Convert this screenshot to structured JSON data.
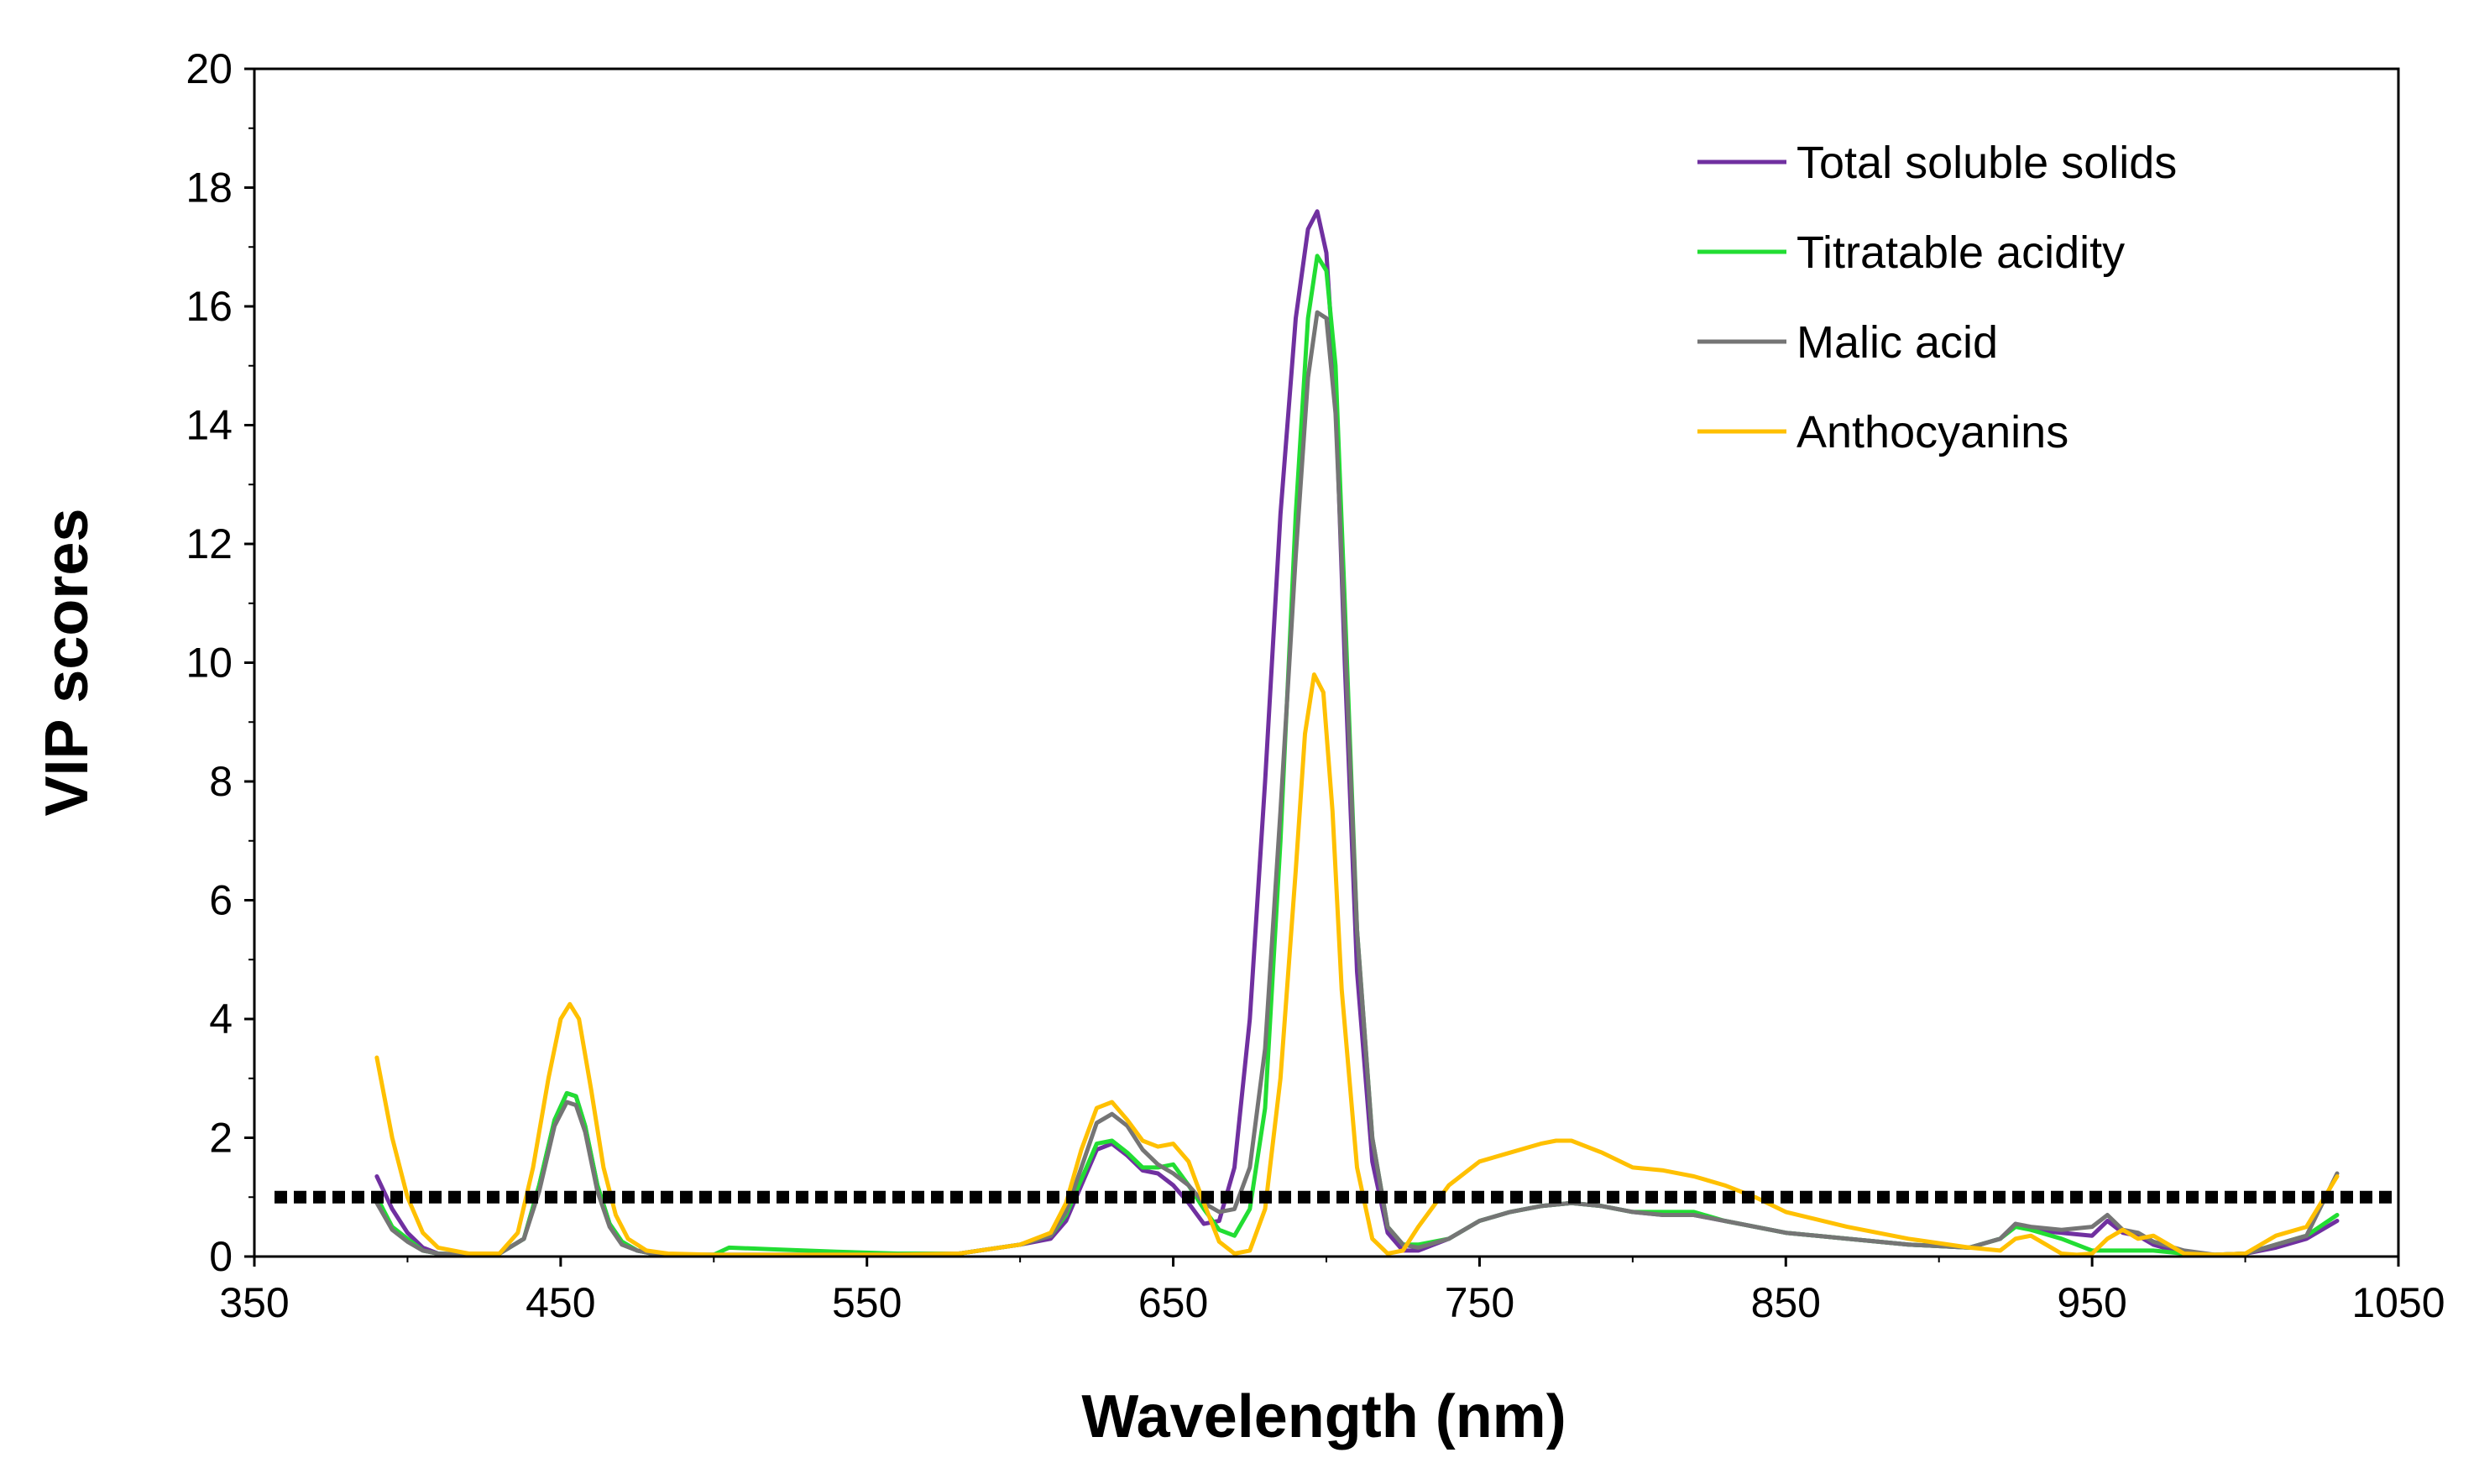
{
  "chart_data": {
    "type": "line",
    "title": "",
    "xlabel": "Wavelength (nm)",
    "ylabel": "VIP scores",
    "xlim": [
      350,
      1050
    ],
    "ylim": [
      0,
      20
    ],
    "x_ticks": [
      350,
      450,
      550,
      650,
      750,
      850,
      950,
      1050
    ],
    "y_ticks": [
      0,
      2,
      4,
      6,
      8,
      10,
      12,
      14,
      16,
      18,
      20
    ],
    "x_tick_labels": [
      "350",
      "450",
      "550",
      "650",
      "750",
      "850",
      "950",
      "1050"
    ],
    "y_tick_labels": [
      "0",
      "2",
      "4",
      "6",
      "8",
      "10",
      "12",
      "14",
      "16",
      "18",
      "20"
    ],
    "grid": false,
    "legend_position": "top-right",
    "threshold": {
      "value": 1.0,
      "style": "dotted",
      "color": "#000000"
    },
    "series": [
      {
        "name": "Total soluble solids",
        "color": "#7030A0",
        "x": [
          390,
          395,
          400,
          405,
          410,
          420,
          430,
          438,
          443,
          448,
          452,
          455,
          458,
          462,
          466,
          470,
          475,
          480,
          490,
          500,
          520,
          540,
          560,
          580,
          600,
          610,
          615,
          620,
          625,
          630,
          635,
          640,
          645,
          650,
          655,
          660,
          665,
          670,
          675,
          680,
          685,
          690,
          694,
          697,
          700,
          703,
          706,
          710,
          715,
          720,
          725,
          730,
          740,
          750,
          760,
          770,
          780,
          790,
          800,
          810,
          820,
          830,
          850,
          870,
          890,
          910,
          920,
          925,
          930,
          940,
          950,
          955,
          960,
          965,
          970,
          980,
          990,
          1000,
          1010,
          1020,
          1030
        ],
        "y": [
          1.35,
          0.8,
          0.4,
          0.15,
          0.05,
          0.03,
          0.05,
          0.3,
          1.2,
          2.3,
          2.75,
          2.7,
          2.2,
          1.2,
          0.55,
          0.25,
          0.1,
          0.05,
          0.03,
          0.03,
          0.03,
          0.03,
          0.03,
          0.05,
          0.2,
          0.3,
          0.6,
          1.2,
          1.8,
          1.9,
          1.7,
          1.45,
          1.4,
          1.2,
          0.9,
          0.55,
          0.6,
          1.5,
          4.0,
          8.0,
          12.5,
          15.8,
          17.3,
          17.6,
          16.9,
          14.5,
          10.0,
          4.8,
          1.6,
          0.4,
          0.1,
          0.1,
          0.3,
          0.6,
          0.75,
          0.85,
          0.9,
          0.85,
          0.75,
          0.7,
          0.7,
          0.6,
          0.4,
          0.3,
          0.2,
          0.15,
          0.3,
          0.55,
          0.45,
          0.4,
          0.35,
          0.6,
          0.4,
          0.35,
          0.2,
          0.05,
          0.03,
          0.05,
          0.15,
          0.3,
          0.6
        ]
      },
      {
        "name": "Titratable acidity",
        "color": "#22DD33",
        "x": [
          390,
          395,
          400,
          405,
          410,
          420,
          430,
          438,
          443,
          448,
          452,
          455,
          458,
          462,
          466,
          470,
          475,
          480,
          490,
          500,
          505,
          520,
          540,
          560,
          580,
          600,
          610,
          615,
          620,
          625,
          630,
          635,
          640,
          645,
          650,
          655,
          660,
          665,
          670,
          675,
          680,
          685,
          690,
          694,
          697,
          700,
          703,
          706,
          710,
          715,
          720,
          725,
          730,
          740,
          750,
          760,
          770,
          780,
          790,
          800,
          810,
          820,
          830,
          850,
          870,
          890,
          910,
          920,
          925,
          930,
          940,
          950,
          955,
          960,
          965,
          970,
          980,
          990,
          1000,
          1010,
          1020,
          1030
        ],
        "y": [
          1.0,
          0.5,
          0.3,
          0.1,
          0.05,
          0.03,
          0.05,
          0.3,
          1.2,
          2.3,
          2.75,
          2.7,
          2.2,
          1.2,
          0.55,
          0.25,
          0.1,
          0.05,
          0.03,
          0.03,
          0.15,
          0.12,
          0.08,
          0.05,
          0.05,
          0.2,
          0.35,
          0.7,
          1.3,
          1.9,
          1.95,
          1.75,
          1.5,
          1.5,
          1.55,
          1.2,
          0.8,
          0.45,
          0.35,
          0.8,
          2.5,
          7.0,
          12.5,
          15.8,
          16.85,
          16.6,
          15.0,
          11.0,
          5.5,
          2.0,
          0.5,
          0.2,
          0.2,
          0.3,
          0.6,
          0.75,
          0.85,
          0.9,
          0.85,
          0.75,
          0.75,
          0.75,
          0.6,
          0.4,
          0.3,
          0.2,
          0.15,
          0.3,
          0.5,
          0.45,
          0.3,
          0.1,
          0.1,
          0.1,
          0.1,
          0.1,
          0.05,
          0.03,
          0.05,
          0.2,
          0.35,
          0.7
        ]
      },
      {
        "name": "Malic acid",
        "color": "#757575",
        "x": [
          390,
          395,
          400,
          405,
          410,
          420,
          430,
          438,
          443,
          448,
          452,
          455,
          458,
          462,
          466,
          470,
          475,
          480,
          490,
          500,
          520,
          540,
          560,
          580,
          600,
          610,
          615,
          620,
          625,
          630,
          635,
          640,
          645,
          650,
          655,
          660,
          665,
          670,
          675,
          680,
          685,
          690,
          694,
          697,
          700,
          703,
          706,
          710,
          715,
          720,
          725,
          730,
          740,
          750,
          760,
          770,
          780,
          790,
          800,
          810,
          820,
          830,
          850,
          870,
          890,
          910,
          920,
          925,
          930,
          940,
          950,
          955,
          960,
          965,
          970,
          980,
          990,
          1000,
          1010,
          1020,
          1030
        ],
        "y": [
          0.9,
          0.45,
          0.25,
          0.1,
          0.05,
          0.03,
          0.05,
          0.3,
          1.1,
          2.2,
          2.6,
          2.55,
          2.1,
          1.1,
          0.5,
          0.2,
          0.1,
          0.05,
          0.03,
          0.03,
          0.03,
          0.03,
          0.03,
          0.05,
          0.2,
          0.35,
          0.75,
          1.5,
          2.25,
          2.4,
          2.2,
          1.8,
          1.55,
          1.4,
          1.2,
          0.9,
          0.75,
          0.8,
          1.5,
          3.5,
          7.5,
          11.8,
          14.8,
          15.9,
          15.8,
          14.2,
          10.5,
          5.5,
          2.0,
          0.5,
          0.2,
          0.15,
          0.3,
          0.6,
          0.75,
          0.85,
          0.9,
          0.85,
          0.75,
          0.7,
          0.7,
          0.6,
          0.4,
          0.3,
          0.2,
          0.15,
          0.3,
          0.55,
          0.5,
          0.45,
          0.5,
          0.7,
          0.45,
          0.4,
          0.25,
          0.1,
          0.03,
          0.05,
          0.2,
          0.35,
          1.4
        ]
      },
      {
        "name": "Anthocyanins",
        "color": "#FFC000",
        "x": [
          390,
          395,
          400,
          405,
          410,
          420,
          430,
          436,
          441,
          446,
          450,
          453,
          456,
          460,
          464,
          468,
          472,
          478,
          485,
          500,
          520,
          540,
          560,
          580,
          600,
          610,
          615,
          620,
          625,
          630,
          635,
          640,
          645,
          650,
          655,
          660,
          665,
          670,
          675,
          680,
          685,
          690,
          693,
          696,
          699,
          702,
          705,
          710,
          715,
          720,
          725,
          730,
          740,
          750,
          760,
          770,
          775,
          780,
          790,
          800,
          810,
          820,
          830,
          840,
          850,
          870,
          890,
          910,
          920,
          925,
          930,
          940,
          945,
          950,
          955,
          960,
          965,
          970,
          975,
          980,
          990,
          1000,
          1010,
          1020,
          1030
        ],
        "y": [
          3.35,
          2.0,
          1.0,
          0.4,
          0.15,
          0.05,
          0.05,
          0.4,
          1.5,
          3.0,
          4.0,
          4.25,
          4.0,
          2.8,
          1.5,
          0.7,
          0.3,
          0.1,
          0.05,
          0.03,
          0.03,
          0.03,
          0.03,
          0.05,
          0.2,
          0.4,
          0.9,
          1.8,
          2.5,
          2.6,
          2.3,
          1.95,
          1.85,
          1.9,
          1.6,
          0.9,
          0.25,
          0.05,
          0.1,
          0.8,
          3.0,
          6.5,
          8.8,
          9.8,
          9.5,
          7.5,
          4.5,
          1.5,
          0.3,
          0.05,
          0.1,
          0.5,
          1.2,
          1.6,
          1.75,
          1.9,
          1.95,
          1.95,
          1.75,
          1.5,
          1.45,
          1.35,
          1.2,
          1.0,
          0.75,
          0.5,
          0.3,
          0.15,
          0.1,
          0.3,
          0.35,
          0.05,
          0.03,
          0.05,
          0.3,
          0.45,
          0.3,
          0.35,
          0.2,
          0.05,
          0.03,
          0.05,
          0.35,
          0.5,
          1.35
        ]
      }
    ]
  }
}
